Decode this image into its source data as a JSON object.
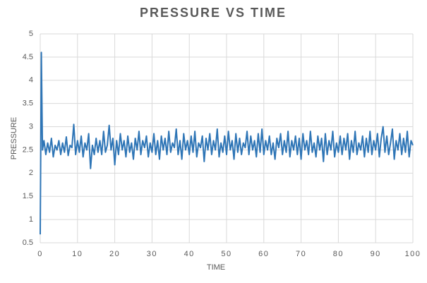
{
  "chart_data": {
    "type": "line",
    "title": "PRESSURE VS TIME",
    "xlabel": "TIME",
    "ylabel": "PRESSURE",
    "xlim": [
      0,
      100
    ],
    "xticks": [
      0,
      10,
      20,
      30,
      40,
      50,
      60,
      70,
      80,
      90,
      100
    ],
    "ylim": [
      0.5,
      5
    ],
    "yticks": [
      0.5,
      1,
      1.5,
      2,
      2.5,
      3,
      3.5,
      4,
      4.5,
      5
    ],
    "grid": true,
    "x": [
      0,
      0.3,
      0.6,
      1,
      1.5,
      2,
      2.5,
      3,
      3.5,
      4,
      4.5,
      5,
      5.5,
      6,
      6.5,
      7,
      7.5,
      8,
      8.5,
      9,
      9.5,
      10,
      10.5,
      11,
      11.5,
      12,
      12.5,
      13,
      13.5,
      14,
      14.5,
      15,
      15.5,
      16,
      16.5,
      17,
      17.5,
      18,
      18.5,
      19,
      19.5,
      20,
      20.5,
      21,
      21.5,
      22,
      22.5,
      23,
      23.5,
      24,
      24.5,
      25,
      25.5,
      26,
      26.5,
      27,
      27.5,
      28,
      28.5,
      29,
      29.5,
      30,
      30.5,
      31,
      31.5,
      32,
      32.5,
      33,
      33.5,
      34,
      34.5,
      35,
      35.5,
      36,
      36.5,
      37,
      37.5,
      38,
      38.5,
      39,
      39.5,
      40,
      40.5,
      41,
      41.5,
      42,
      42.5,
      43,
      43.5,
      44,
      44.5,
      45,
      45.5,
      46,
      46.5,
      47,
      47.5,
      48,
      48.5,
      49,
      49.5,
      50,
      50.5,
      51,
      51.5,
      52,
      52.5,
      53,
      53.5,
      54,
      54.5,
      55,
      55.5,
      56,
      56.5,
      57,
      57.5,
      58,
      58.5,
      59,
      59.5,
      60,
      60.5,
      61,
      61.5,
      62,
      62.5,
      63,
      63.5,
      64,
      64.5,
      65,
      65.5,
      66,
      66.5,
      67,
      67.5,
      68,
      68.5,
      69,
      69.5,
      70,
      70.5,
      71,
      71.5,
      72,
      72.5,
      73,
      73.5,
      74,
      74.5,
      75,
      75.5,
      76,
      76.5,
      77,
      77.5,
      78,
      78.5,
      79,
      79.5,
      80,
      80.5,
      81,
      81.5,
      82,
      82.5,
      83,
      83.5,
      84,
      84.5,
      85,
      85.5,
      86,
      86.5,
      87,
      87.5,
      88,
      88.5,
      89,
      89.5,
      90,
      90.5,
      91,
      91.5,
      92,
      92.5,
      93,
      93.5,
      94,
      94.5,
      95,
      95.5,
      96,
      96.5,
      97,
      97.5,
      98,
      98.5,
      99,
      99.5,
      100
    ],
    "series": [
      {
        "color": "#2e75b6",
        "values": [
          0.68,
          4.6,
          2.5,
          2.7,
          2.4,
          2.65,
          2.45,
          2.75,
          2.35,
          2.6,
          2.5,
          2.7,
          2.4,
          2.65,
          2.45,
          2.78,
          2.38,
          2.6,
          2.55,
          3.05,
          2.4,
          2.7,
          2.45,
          2.8,
          2.35,
          2.65,
          2.5,
          2.85,
          2.1,
          2.6,
          2.4,
          2.75,
          2.45,
          2.7,
          2.4,
          2.9,
          2.45,
          2.6,
          3.03,
          2.5,
          2.75,
          2.18,
          2.7,
          2.4,
          2.85,
          2.5,
          2.7,
          2.35,
          2.8,
          2.45,
          2.65,
          2.3,
          2.75,
          2.5,
          2.9,
          2.4,
          2.7,
          2.55,
          2.8,
          2.35,
          2.65,
          2.45,
          2.85,
          2.4,
          2.7,
          2.3,
          2.8,
          2.5,
          2.75,
          2.4,
          2.9,
          2.45,
          2.65,
          2.55,
          2.95,
          2.4,
          2.7,
          2.3,
          2.85,
          2.5,
          2.7,
          2.4,
          2.8,
          2.45,
          2.9,
          2.35,
          2.65,
          2.55,
          2.8,
          2.25,
          2.75,
          2.5,
          2.85,
          2.4,
          2.7,
          2.5,
          2.95,
          2.35,
          2.65,
          2.45,
          2.8,
          2.4,
          2.9,
          2.5,
          2.7,
          2.3,
          2.85,
          2.45,
          2.75,
          2.4,
          2.65,
          2.55,
          2.9,
          2.4,
          2.8,
          2.5,
          2.7,
          2.35,
          2.85,
          2.45,
          2.95,
          2.4,
          2.7,
          2.5,
          2.8,
          2.4,
          2.65,
          2.3,
          2.75,
          2.55,
          2.85,
          2.4,
          2.7,
          2.45,
          2.9,
          2.35,
          2.7,
          2.5,
          2.8,
          2.4,
          2.75,
          2.3,
          2.85,
          2.5,
          2.7,
          2.4,
          2.9,
          2.45,
          2.65,
          2.35,
          2.8,
          2.5,
          2.75,
          2.25,
          2.85,
          2.4,
          2.7,
          2.5,
          2.9,
          2.35,
          2.65,
          2.45,
          2.8,
          2.4,
          2.75,
          2.5,
          2.85,
          2.3,
          2.7,
          2.45,
          2.9,
          2.4,
          2.65,
          2.5,
          2.8,
          2.35,
          2.75,
          2.45,
          2.9,
          2.4,
          2.7,
          2.5,
          2.85,
          2.35,
          2.75,
          3.0,
          2.45,
          2.8,
          2.4,
          2.65,
          2.95,
          2.3,
          2.7,
          2.5,
          2.85,
          2.4,
          2.75,
          2.45,
          2.9,
          2.35,
          2.7,
          2.6
        ]
      }
    ]
  }
}
